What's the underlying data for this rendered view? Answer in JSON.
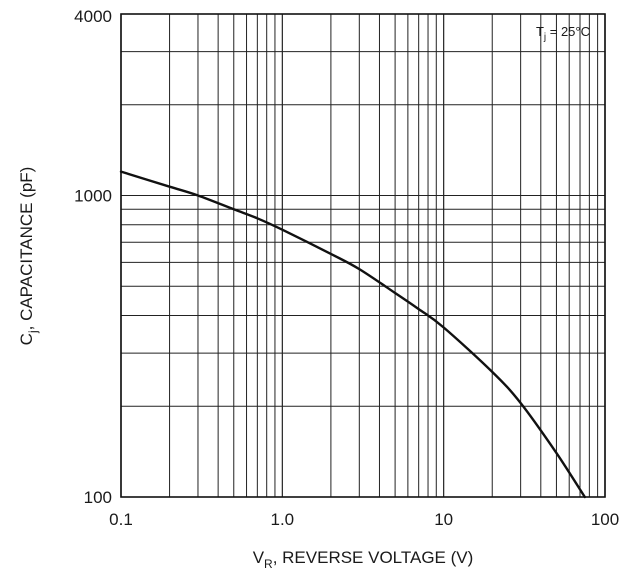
{
  "chart_data": {
    "type": "line",
    "title": "",
    "xlabel": {
      "main": "V",
      "sub": "R",
      "rest": ", REVERSE VOLTAGE (V)"
    },
    "ylabel": {
      "main": "C",
      "sub": "j",
      "rest": ", CAPACITANCE (pF)"
    },
    "xscale": "log",
    "yscale": "log",
    "xlim": [
      0.1,
      100
    ],
    "ylim": [
      100,
      4000
    ],
    "x_tick_labels": [
      "0.1",
      "1.0",
      "10",
      "100"
    ],
    "x_tick_values": [
      0.1,
      1,
      10,
      100
    ],
    "y_tick_labels": [
      "100",
      "1000",
      "4000"
    ],
    "y_tick_values": [
      100,
      1000,
      4000
    ],
    "grid": true,
    "annotation": {
      "main": "T",
      "sub": "j",
      "rest": " = 25°C",
      "placement": "top-right"
    },
    "series": [
      {
        "x": [
          0.1,
          0.2,
          0.3,
          0.5,
          0.7,
          1.0,
          2.0,
          3.0,
          5.0,
          7.0,
          10,
          20,
          30,
          50,
          75
        ],
        "y": [
          1200,
          1070,
          1000,
          900,
          840,
          770,
          640,
          570,
          475,
          420,
          365,
          260,
          205,
          140,
          100
        ]
      }
    ]
  }
}
